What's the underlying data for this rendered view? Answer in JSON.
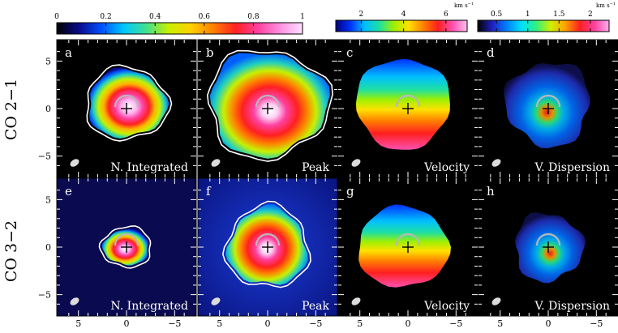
{
  "colorbars": [
    {
      "id": "intensity",
      "ticks": [
        "0",
        "0.2",
        "0.4",
        "0.6",
        "0.8",
        "1"
      ],
      "unit": "",
      "ramp": [
        "#000000",
        "#0a0a8c",
        "#0050ff",
        "#00c8ff",
        "#40e090",
        "#c8f000",
        "#ffd000",
        "#ff8000",
        "#ff2020",
        "#ff40a0",
        "#ff90e0",
        "#ffe0ff"
      ]
    },
    {
      "id": "velocity",
      "ticks": [
        "2",
        "4",
        "6"
      ],
      "unit": "km s",
      "ramp": [
        "#00007a",
        "#0030ff",
        "#00c0ff",
        "#20e0a0",
        "#a0f000",
        "#ffe000",
        "#ff8000",
        "#ff2020",
        "#ff50b0",
        "#ffc0f0"
      ]
    },
    {
      "id": "dispersion",
      "ticks": [
        "0.5",
        "1",
        "1.5",
        "2"
      ],
      "unit": "km s",
      "ramp": [
        "#000000",
        "#2020c0",
        "#0080ff",
        "#00e0ff",
        "#30f080",
        "#d0f000",
        "#ffa000",
        "#ff2020",
        "#ff40a0",
        "#ffb0f0"
      ]
    }
  ],
  "row_labels": [
    "CO 2−1",
    "CO 3−2"
  ],
  "panels": [
    {
      "letter": "a",
      "label": "N. Integrated",
      "kind": "integrated",
      "row": 0
    },
    {
      "letter": "b",
      "label": "Peak",
      "kind": "peak",
      "row": 0
    },
    {
      "letter": "c",
      "label": "Velocity",
      "kind": "velocity",
      "row": 0
    },
    {
      "letter": "d",
      "label": "V. Dispersion",
      "kind": "dispersion",
      "row": 0
    },
    {
      "letter": "e",
      "label": "N. Integrated",
      "kind": "integrated",
      "row": 1
    },
    {
      "letter": "f",
      "label": "Peak",
      "kind": "peak",
      "row": 1
    },
    {
      "letter": "g",
      "label": "Velocity",
      "kind": "velocity",
      "row": 1
    },
    {
      "letter": "h",
      "label": "V. Dispersion",
      "kind": "dispersion",
      "row": 1
    }
  ],
  "axes": {
    "y_ticks": [
      "5",
      "0",
      "−5"
    ],
    "x_ticks": [
      "5",
      "0",
      "−5"
    ]
  }
}
